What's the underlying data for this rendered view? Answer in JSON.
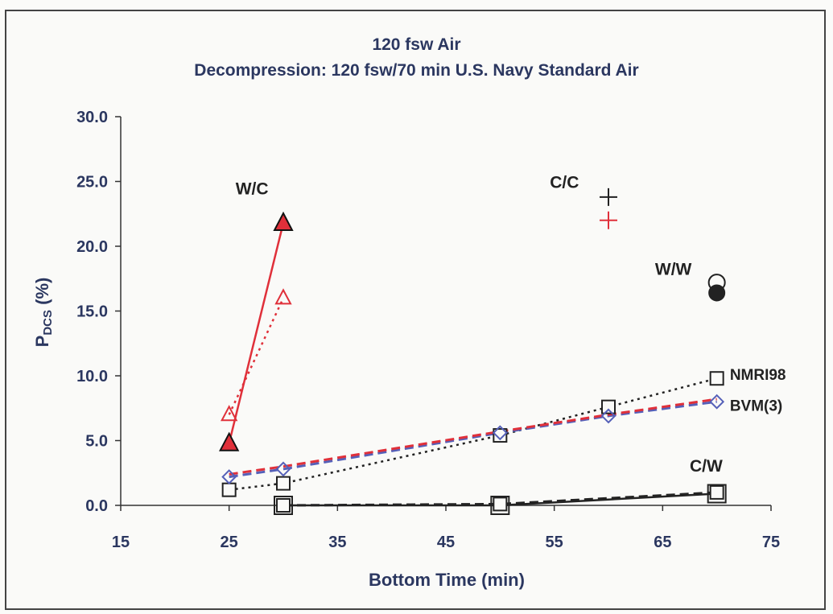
{
  "chart_data": {
    "type": "scatter",
    "title": "120 fsw Air",
    "subtitle": "Decompression: 120 fsw/70 min U.S. Navy Standard Air",
    "xlabel": "Bottom Time (min)",
    "ylabel_main": "P",
    "ylabel_sub": "DCS",
    "ylabel_tail": " (%)",
    "xlim": [
      15,
      75
    ],
    "ylim": [
      0,
      30
    ],
    "xticks": [
      "15",
      "25",
      "35",
      "45",
      "55",
      "65",
      "75"
    ],
    "yticks": [
      "0.0",
      "5.0",
      "10.0",
      "15.0",
      "20.0",
      "25.0",
      "30.0"
    ],
    "grid": false,
    "series": [
      {
        "name": "W/C",
        "color": "#e0303a",
        "style": "solid",
        "marker": "filled-triangle",
        "x": [
          25,
          30
        ],
        "y": [
          4.8,
          21.8
        ]
      },
      {
        "color": "#e0303a",
        "style": "dotted",
        "marker": "open-triangle",
        "x": [
          25,
          30
        ],
        "y": [
          7.0,
          16.0
        ]
      },
      {
        "name": "C/C",
        "color": "#222222",
        "marker": "plus",
        "x": [
          60
        ],
        "y": [
          23.8
        ]
      },
      {
        "color": "#e0303a",
        "marker": "plus",
        "x": [
          60
        ],
        "y": [
          22.0
        ]
      },
      {
        "name": "W/W",
        "color": "#222222",
        "marker": "open-circle",
        "x": [
          70
        ],
        "y": [
          17.2
        ]
      },
      {
        "color": "#222222",
        "marker": "filled-circle",
        "x": [
          70
        ],
        "y": [
          16.4
        ]
      },
      {
        "name": "NMRI98",
        "color": "#222222",
        "style": "dotted",
        "marker": "open-square",
        "x": [
          25,
          30,
          50,
          60,
          70
        ],
        "y": [
          1.2,
          1.7,
          5.4,
          7.6,
          9.8
        ]
      },
      {
        "name": "BVM(3)",
        "color": "#5560b8",
        "style": "dashed",
        "marker": "open-diamond",
        "x": [
          25,
          30,
          50,
          60,
          70
        ],
        "y": [
          2.2,
          2.8,
          5.6,
          6.9,
          8.0
        ]
      },
      {
        "color": "#e0303a",
        "style": "dashed",
        "x": [
          25,
          30,
          50,
          60,
          70
        ],
        "y": [
          2.4,
          3.0,
          5.7,
          7.0,
          8.2
        ]
      },
      {
        "name": "C/W",
        "color": "#222222",
        "style": "solid",
        "marker": "filled-square",
        "x": [
          30,
          50,
          70
        ],
        "y": [
          0.0,
          0.0,
          0.9
        ]
      },
      {
        "color": "#222222",
        "style": "dashed",
        "marker": "open-square",
        "x": [
          30,
          50,
          70
        ],
        "y": [
          0.0,
          0.1,
          1.0
        ]
      }
    ],
    "annotations": [
      {
        "text": "W/C",
        "x": 25.6,
        "y": 24.0
      },
      {
        "text": "C/C",
        "x": 54.6,
        "y": 24.5
      },
      {
        "text": "W/W",
        "x": 64.3,
        "y": 17.8
      },
      {
        "text": "NMRI98",
        "x": 71.2,
        "y": 9.7
      },
      {
        "text": "BVM(3)",
        "x": 71.2,
        "y": 7.3
      },
      {
        "text": "C/W",
        "x": 67.5,
        "y": 2.6
      }
    ]
  }
}
